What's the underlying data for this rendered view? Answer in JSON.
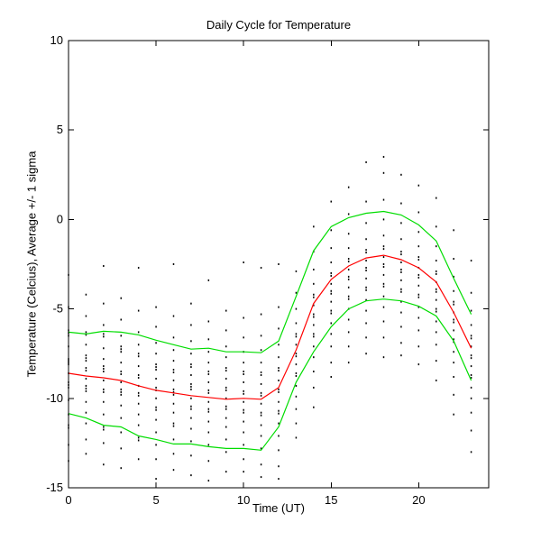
{
  "figure": {
    "background": "#ffffff"
  },
  "chart_data": {
    "type": "line",
    "title": "Daily Cycle for Temperature",
    "xlabel": "Time (UT)",
    "ylabel": "Temperature (Celcius), Average +/- 1 sigma",
    "xlim": [
      0,
      24
    ],
    "ylim": [
      -15,
      10
    ],
    "xticks": [
      0,
      5,
      10,
      15,
      20
    ],
    "yticks": [
      -15,
      -10,
      -5,
      0,
      5,
      10
    ],
    "grid": false,
    "legend": "none",
    "colors": {
      "mean_line": "#ff0000",
      "sigma_line": "#00dd00",
      "scatter": "#000000",
      "axis": "#000000"
    },
    "hours": [
      0,
      1,
      2,
      3,
      4,
      5,
      6,
      7,
      8,
      9,
      10,
      11,
      12,
      13,
      14,
      15,
      16,
      17,
      18,
      19,
      20,
      21,
      22,
      23
    ],
    "series": [
      {
        "name": "average",
        "color_key": "mean_line",
        "values": [
          -8.6,
          -8.75,
          -8.85,
          -9.0,
          -9.3,
          -9.55,
          -9.7,
          -9.85,
          -9.95,
          -10.05,
          -10.0,
          -10.05,
          -9.4,
          -7.3,
          -4.7,
          -3.35,
          -2.6,
          -2.15,
          -2.0,
          -2.25,
          -2.7,
          -3.5,
          -5.2,
          -7.2
        ]
      },
      {
        "name": "average_plus_1_sigma",
        "color_key": "sigma_line",
        "values": [
          -6.3,
          -6.4,
          -6.25,
          -6.3,
          -6.45,
          -6.75,
          -7.0,
          -7.25,
          -7.2,
          -7.4,
          -7.4,
          -7.45,
          -6.8,
          -4.3,
          -1.75,
          -0.4,
          0.1,
          0.35,
          0.45,
          0.25,
          -0.3,
          -1.2,
          -3.3,
          -5.3
        ]
      },
      {
        "name": "average_minus_1_sigma",
        "color_key": "sigma_line",
        "values": [
          -10.85,
          -11.1,
          -11.5,
          -11.6,
          -12.1,
          -12.3,
          -12.55,
          -12.55,
          -12.7,
          -12.8,
          -12.8,
          -12.9,
          -11.6,
          -9.1,
          -7.4,
          -6.0,
          -5.0,
          -4.55,
          -4.45,
          -4.55,
          -4.85,
          -5.4,
          -6.8,
          -9.0
        ]
      }
    ],
    "scatter_points": {
      "marker": "dot",
      "x_is_hour_index": true,
      "by_hour": [
        [
          -3.1,
          -4.9,
          -6.2,
          -6.35,
          -6.5,
          -7.1,
          -7.8,
          -7.9,
          -8.0,
          -8.1,
          -8.6,
          -9.1,
          -9.25,
          -9.4,
          -10.1,
          -10.9,
          -11.5,
          -11.65,
          -12.6,
          -13.5
        ],
        [
          -4.2,
          -5.4,
          -6.3,
          -6.45,
          -7.0,
          -7.6,
          -7.75,
          -7.9,
          -8.3,
          -8.45,
          -8.9,
          -9.3,
          -9.45,
          -9.6,
          -10.2,
          -10.8,
          -11.4,
          -12.3,
          -13.1
        ],
        [
          -2.6,
          -4.7,
          -5.9,
          -6.4,
          -6.55,
          -7.2,
          -7.8,
          -8.2,
          -8.35,
          -8.5,
          -9.0,
          -9.5,
          -9.65,
          -10.2,
          -10.9,
          -11.6,
          -11.75,
          -12.5,
          -13.7
        ],
        [
          -4.4,
          -5.6,
          -6.5,
          -7.1,
          -7.25,
          -7.4,
          -8.0,
          -8.5,
          -8.65,
          -9.1,
          -9.5,
          -9.65,
          -9.8,
          -10.4,
          -11.1,
          -11.9,
          -12.8,
          -13.9
        ],
        [
          -2.7,
          -5.1,
          -6.3,
          -7.0,
          -7.5,
          -7.65,
          -8.2,
          -8.7,
          -8.85,
          -9.3,
          -9.7,
          -9.85,
          -10.3,
          -10.9,
          -11.5,
          -12.2,
          -12.35,
          -13.4
        ],
        [
          -4.9,
          -6.0,
          -6.9,
          -7.5,
          -8.1,
          -8.25,
          -8.4,
          -8.9,
          -9.4,
          -9.55,
          -10.0,
          -10.5,
          -10.65,
          -11.2,
          -11.9,
          -12.6,
          -13.4,
          -14.5
        ],
        [
          -2.5,
          -5.4,
          -6.6,
          -7.3,
          -7.9,
          -8.4,
          -8.55,
          -9.0,
          -9.5,
          -9.65,
          -9.8,
          -10.3,
          -10.8,
          -11.4,
          -11.55,
          -12.3,
          -13.1,
          -14.0
        ],
        [
          -4.7,
          -5.9,
          -6.8,
          -7.5,
          -8.1,
          -8.25,
          -8.7,
          -9.2,
          -9.35,
          -9.5,
          -10.0,
          -10.45,
          -10.6,
          -11.1,
          -11.7,
          -12.4,
          -13.2,
          -14.3
        ],
        [
          -3.4,
          -5.7,
          -6.7,
          -7.4,
          -8.0,
          -8.5,
          -8.65,
          -9.1,
          -9.55,
          -9.7,
          -10.2,
          -10.6,
          -10.75,
          -11.3,
          -11.9,
          -12.6,
          -13.5,
          -14.6
        ],
        [
          -5.1,
          -6.2,
          -7.1,
          -7.7,
          -8.3,
          -8.45,
          -8.9,
          -9.4,
          -9.55,
          -10.0,
          -10.45,
          -10.6,
          -11.1,
          -11.6,
          -12.3,
          -13.0,
          -14.1
        ],
        [
          -2.4,
          -5.5,
          -6.6,
          -7.4,
          -8.0,
          -8.5,
          -8.65,
          -9.1,
          -9.6,
          -9.75,
          -10.2,
          -10.65,
          -10.8,
          -11.3,
          -11.9,
          -12.6,
          -13.4,
          -14.1
        ],
        [
          -2.7,
          -5.3,
          -6.5,
          -7.3,
          -8.0,
          -8.55,
          -8.7,
          -9.2,
          -9.7,
          -9.85,
          -10.3,
          -10.8,
          -10.95,
          -11.5,
          -12.1,
          -12.8,
          -13.7,
          -14.4
        ],
        [
          -2.5,
          -4.9,
          -6.1,
          -7.0,
          -7.7,
          -8.3,
          -8.45,
          -9.0,
          -9.5,
          -9.65,
          -10.2,
          -10.7,
          -10.85,
          -11.4,
          -12.1,
          -12.9,
          -13.8,
          -14.5
        ],
        [
          -2.9,
          -4.1,
          -5.0,
          -5.8,
          -6.4,
          -6.55,
          -7.0,
          -7.5,
          -7.65,
          -8.1,
          -8.6,
          -8.75,
          -9.3,
          -9.9,
          -10.6,
          -11.4,
          -12.2
        ],
        [
          -0.4,
          -1.8,
          -2.8,
          -3.6,
          -4.2,
          -4.35,
          -4.8,
          -5.3,
          -5.45,
          -5.9,
          -6.4,
          -6.55,
          -7.1,
          -7.7,
          -8.5,
          -9.4,
          -10.5
        ],
        [
          1.0,
          -0.6,
          -1.6,
          -2.4,
          -3.0,
          -3.15,
          -3.6,
          -4.0,
          -4.15,
          -4.6,
          -5.1,
          -5.25,
          -5.8,
          -6.4,
          -7.1,
          -8.0,
          -8.8
        ],
        [
          1.8,
          0.3,
          -0.8,
          -1.6,
          -2.2,
          -2.35,
          -2.8,
          -3.2,
          -3.35,
          -3.8,
          -4.3,
          -4.45,
          -5.0,
          -5.6,
          -6.3,
          -7.1,
          -8.0
        ],
        [
          3.2,
          1.0,
          -0.2,
          -1.1,
          -1.7,
          -1.85,
          -2.3,
          -2.7,
          -2.85,
          -3.3,
          -3.8,
          -3.95,
          -4.5,
          -5.1,
          -5.8,
          -6.6,
          -7.5
        ],
        [
          3.5,
          2.6,
          1.1,
          0.0,
          -0.9,
          -1.5,
          -1.65,
          -2.1,
          -2.5,
          -2.65,
          -3.1,
          -3.6,
          -3.75,
          -4.3,
          -4.9,
          -5.7,
          -6.6,
          -7.7
        ],
        [
          2.5,
          0.9,
          -0.2,
          -1.1,
          -1.8,
          -1.95,
          -2.4,
          -2.8,
          -2.95,
          -3.4,
          -3.9,
          -4.05,
          -4.6,
          -5.2,
          -6.0,
          -6.9,
          -7.6
        ],
        [
          1.9,
          0.4,
          -0.7,
          -1.5,
          -2.1,
          -2.25,
          -2.7,
          -3.1,
          -3.25,
          -3.7,
          -4.2,
          -4.35,
          -4.9,
          -5.5,
          -6.2,
          -7.1,
          -8.1
        ],
        [
          1.2,
          -0.4,
          -1.5,
          -2.3,
          -2.9,
          -3.05,
          -3.5,
          -3.9,
          -4.05,
          -4.5,
          -5.0,
          -5.15,
          -5.7,
          -6.3,
          -7.0,
          -7.9,
          -9.0
        ],
        [
          -0.6,
          -2.2,
          -3.2,
          -4.0,
          -4.6,
          -4.75,
          -5.2,
          -5.6,
          -5.75,
          -6.2,
          -6.7,
          -6.85,
          -7.4,
          -8.0,
          -8.8,
          -9.8,
          -10.9
        ],
        [
          -2.3,
          -4.1,
          -5.1,
          -5.9,
          -6.5,
          -6.65,
          -7.1,
          -7.6,
          -7.75,
          -8.2,
          -8.7,
          -8.85,
          -9.4,
          -10.0,
          -10.8,
          -11.8,
          -13.0
        ]
      ]
    }
  }
}
